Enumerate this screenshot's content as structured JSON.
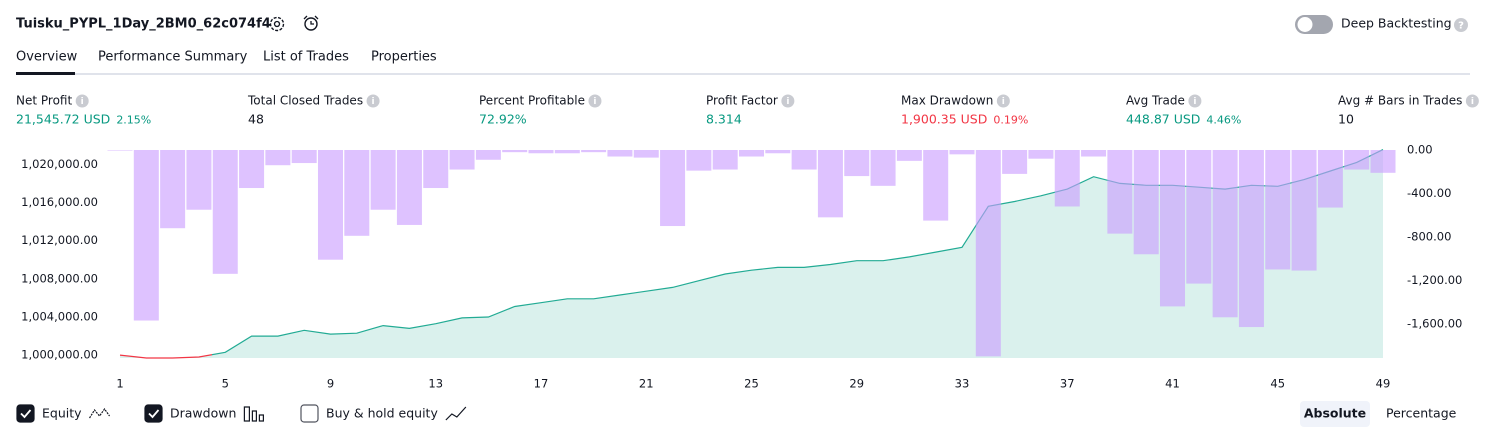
{
  "header": {
    "title": "Tuisku_PYPL_1Day_2BM0_62c074f4",
    "toggle_label": "Deep Backtesting"
  },
  "tabs": [
    "Overview",
    "Performance Summary",
    "List of Trades",
    "Properties"
  ],
  "metrics": [
    {
      "label": "Net Profit",
      "value": "21,545.72 USD",
      "percent": "2.15%",
      "color": "#089981"
    },
    {
      "label": "Total Closed Trades",
      "value": "48",
      "color": "#131722"
    },
    {
      "label": "Percent Profitable",
      "value": "72.92%",
      "color": "#089981"
    },
    {
      "label": "Profit Factor",
      "value": "8.314",
      "color": "#089981"
    },
    {
      "label": "Max Drawdown",
      "value": "1,900.35 USD",
      "percent": "0.19%",
      "color": "#f23645"
    },
    {
      "label": "Avg Trade",
      "value": "448.87 USD",
      "percent": "4.46%",
      "color": "#089981"
    },
    {
      "label": "Avg # Bars in Trades",
      "value": "10",
      "color": "#131722"
    }
  ],
  "chart_data": {
    "type": "line",
    "x": [
      1,
      2,
      3,
      4,
      5,
      6,
      7,
      8,
      9,
      10,
      11,
      12,
      13,
      14,
      15,
      16,
      17,
      18,
      19,
      20,
      21,
      22,
      23,
      24,
      25,
      26,
      27,
      28,
      29,
      30,
      31,
      32,
      33,
      34,
      35,
      36,
      37,
      38,
      39,
      40,
      41,
      42,
      43,
      44,
      45,
      46,
      47,
      48,
      49
    ],
    "xlim": [
      1,
      49
    ],
    "xticks": [
      1,
      5,
      9,
      13,
      17,
      21,
      25,
      29,
      33,
      37,
      41,
      45,
      49
    ],
    "ylim": [
      999700,
      1021500
    ],
    "yticks": [
      {
        "value": 1000000,
        "label": "1,000,000.00"
      },
      {
        "value": 1004000,
        "label": "1,004,000.00"
      },
      {
        "value": 1008000,
        "label": "1,008,000.00"
      },
      {
        "value": 1012000,
        "label": "1,012,000.00"
      },
      {
        "value": 1016000,
        "label": "1,016,000.00"
      },
      {
        "value": 1020000,
        "label": "1,020,000.00"
      }
    ],
    "y2lim": [
      -1915,
      0
    ],
    "y2ticks": [
      {
        "value": 0,
        "label": "0.00"
      },
      {
        "value": -400,
        "label": "-400.00"
      },
      {
        "value": -800,
        "label": "-800.00"
      },
      {
        "value": -1200,
        "label": "-1,200.00"
      },
      {
        "value": -1600,
        "label": "-1,600.00"
      }
    ],
    "series": [
      {
        "name": "Equity",
        "type": "line",
        "checked": true,
        "color": "#22ab94",
        "loss_color": "#f23645",
        "values": [
          1000000,
          999700,
          999700,
          999800,
          1000300,
          1002000,
          1002000,
          1002600,
          1002200,
          1002300,
          1003100,
          1002800,
          1003300,
          1003900,
          1004000,
          1005100,
          1005500,
          1005900,
          1005900,
          1006300,
          1006700,
          1007100,
          1007800,
          1008500,
          1008900,
          1009200,
          1009200,
          1009500,
          1009900,
          1009900,
          1010300,
          1010800,
          1011300,
          1015600,
          1016100,
          1016700,
          1017400,
          1018700,
          1018000,
          1017800,
          1017800,
          1017600,
          1017400,
          1017800,
          1017700,
          1018400,
          1019300,
          1020200,
          1021546
        ]
      },
      {
        "name": "Drawdown",
        "type": "bar",
        "axis": "y2",
        "checked": true,
        "color": "#c99cff",
        "values": [
          -5,
          -1570,
          -720,
          -550,
          -1140,
          -350,
          -140,
          -120,
          -1010,
          -790,
          -550,
          -690,
          -350,
          -180,
          -90,
          -20,
          -30,
          -30,
          -20,
          -60,
          -70,
          -700,
          -190,
          -180,
          -60,
          -30,
          -180,
          -620,
          -240,
          -330,
          -100,
          -650,
          -40,
          -1900,
          -220,
          -80,
          -520,
          -60,
          -770,
          -960,
          -1440,
          -1230,
          -1540,
          -1630,
          -1100,
          -1110,
          -530,
          -180,
          -210
        ]
      }
    ],
    "extra_toggle": {
      "label": "Buy & hold equity",
      "checked": false
    }
  },
  "modes": [
    "Absolute",
    "Percentage"
  ]
}
